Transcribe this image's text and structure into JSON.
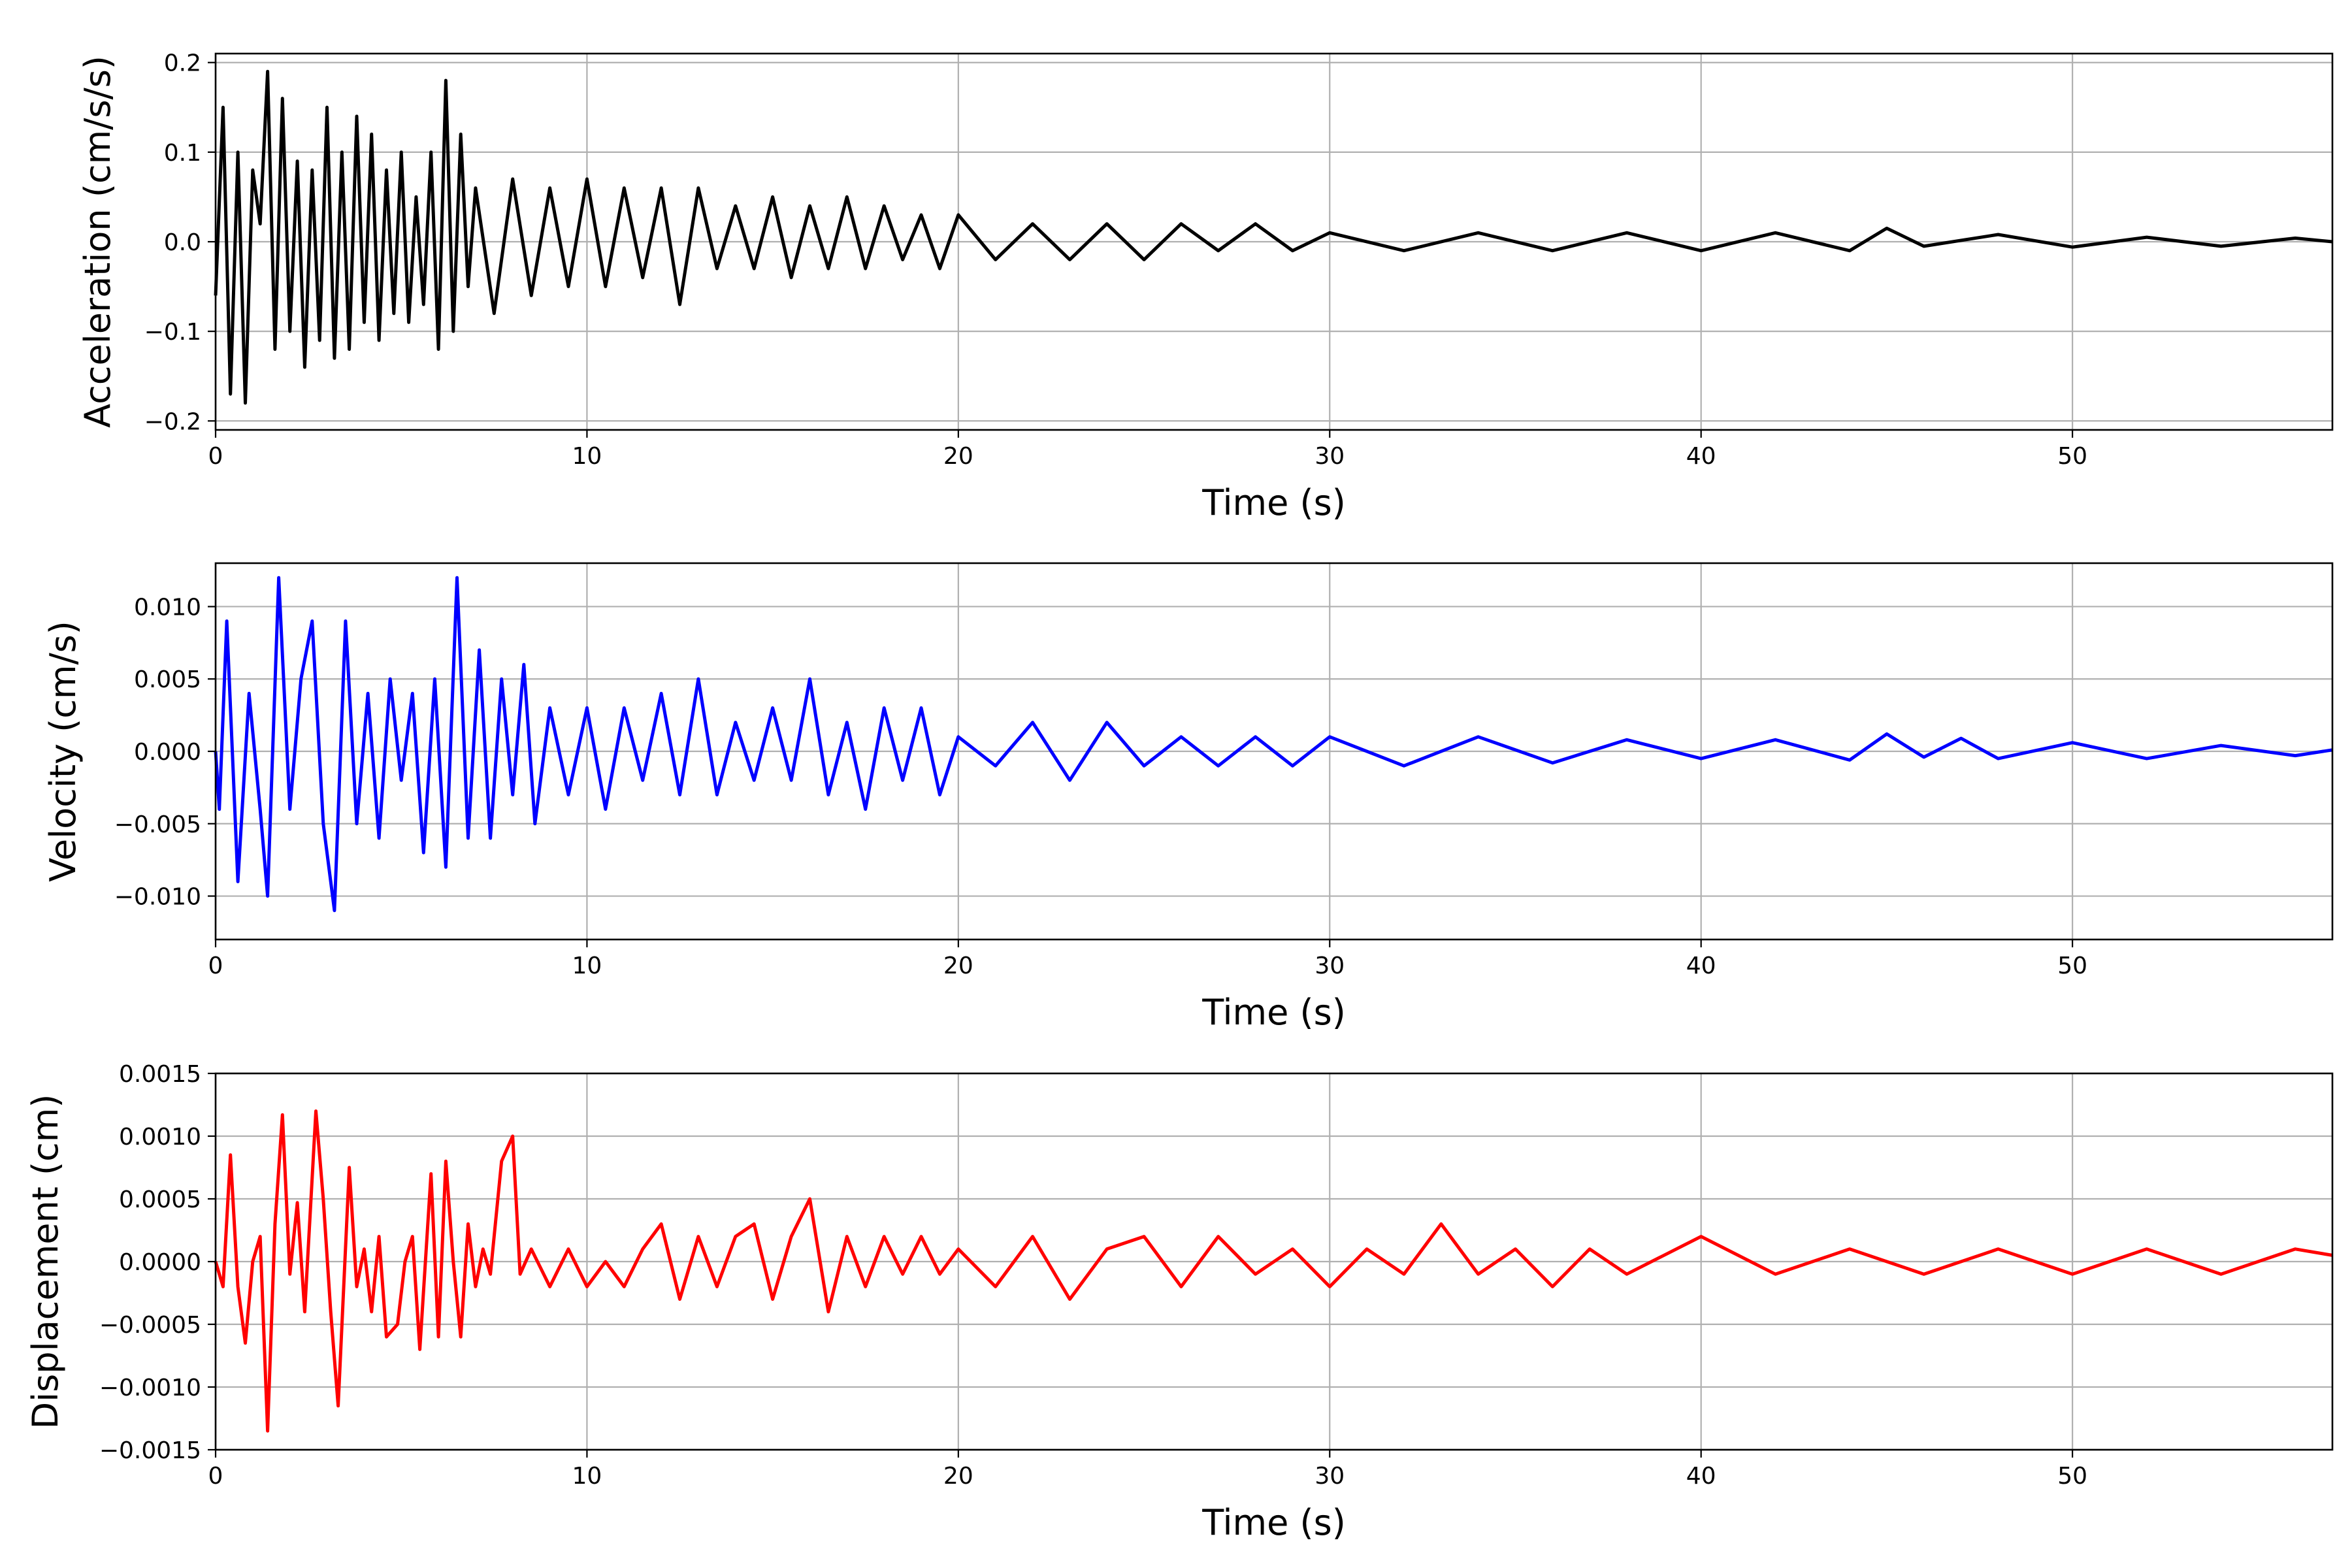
{
  "chart_data": [
    {
      "type": "line",
      "xlabel": "Time (s)",
      "ylabel": "Acceleration (cm/s/s)",
      "xlim": [
        0,
        57
      ],
      "ylim": [
        -0.21,
        0.21
      ],
      "xticks": [
        0,
        10,
        20,
        30,
        40,
        50
      ],
      "xtick_labels": [
        "0",
        "10",
        "20",
        "30",
        "40",
        "50"
      ],
      "yticks": [
        -0.2,
        -0.1,
        0.0,
        0.1,
        0.2
      ],
      "ytick_labels": [
        "−0.2",
        "−0.1",
        "0.0",
        "0.1",
        "0.2"
      ],
      "grid": true,
      "legend": "none",
      "series": [
        {
          "color": "#000000",
          "x": [
            0,
            0.2,
            0.4,
            0.6,
            0.8,
            1.0,
            1.2,
            1.4,
            1.6,
            1.8,
            2.0,
            2.2,
            2.4,
            2.6,
            2.8,
            3.0,
            3.2,
            3.4,
            3.6,
            3.8,
            4.0,
            4.2,
            4.4,
            4.6,
            4.8,
            5.0,
            5.2,
            5.4,
            5.6,
            5.8,
            6.0,
            6.2,
            6.4,
            6.6,
            6.8,
            7.0,
            7.5,
            8,
            8.5,
            9,
            9.5,
            10,
            10.5,
            11,
            11.5,
            12,
            12.5,
            13,
            13.5,
            14,
            14.5,
            15,
            15.5,
            16,
            16.5,
            17,
            17.5,
            18,
            18.5,
            19,
            19.5,
            20,
            21,
            22,
            23,
            24,
            25,
            26,
            27,
            28,
            29,
            30,
            32,
            34,
            36,
            38,
            40,
            42,
            44,
            45,
            46,
            48,
            50,
            52,
            54,
            56,
            57
          ],
          "y": [
            -0.06,
            0.15,
            -0.17,
            0.1,
            -0.18,
            0.08,
            0.02,
            0.19,
            -0.12,
            0.16,
            -0.1,
            0.09,
            -0.14,
            0.08,
            -0.11,
            0.15,
            -0.13,
            0.1,
            -0.12,
            0.14,
            -0.09,
            0.12,
            -0.11,
            0.08,
            -0.08,
            0.1,
            -0.09,
            0.05,
            -0.07,
            0.1,
            -0.12,
            0.18,
            -0.1,
            0.12,
            -0.05,
            0.06,
            -0.08,
            0.07,
            -0.06,
            0.06,
            -0.05,
            0.07,
            -0.05,
            0.06,
            -0.04,
            0.06,
            -0.07,
            0.06,
            -0.03,
            0.04,
            -0.03,
            0.05,
            -0.04,
            0.04,
            -0.03,
            0.05,
            -0.03,
            0.04,
            -0.02,
            0.03,
            -0.03,
            0.03,
            -0.02,
            0.02,
            -0.02,
            0.02,
            -0.02,
            0.02,
            -0.01,
            0.02,
            -0.01,
            0.01,
            -0.01,
            0.01,
            -0.01,
            0.01,
            -0.01,
            0.01,
            -0.01,
            0.015,
            -0.005,
            0.008,
            -0.006,
            0.005,
            -0.005,
            0.004,
            0.0
          ]
        }
      ]
    },
    {
      "type": "line",
      "xlabel": "Time (s)",
      "ylabel": "Velocity (cm/s)",
      "xlim": [
        0,
        57
      ],
      "ylim": [
        -0.013,
        0.013
      ],
      "xticks": [
        0,
        10,
        20,
        30,
        40,
        50
      ],
      "xtick_labels": [
        "0",
        "10",
        "20",
        "30",
        "40",
        "50"
      ],
      "yticks": [
        -0.01,
        -0.005,
        0.0,
        0.005,
        0.01
      ],
      "ytick_labels": [
        "−0.010",
        "−0.005",
        "0.000",
        "0.005",
        "0.010"
      ],
      "grid": true,
      "legend": "none",
      "series": [
        {
          "color": "#0000ff",
          "x": [
            0,
            0.1,
            0.3,
            0.6,
            0.9,
            1.2,
            1.4,
            1.7,
            2.0,
            2.3,
            2.6,
            2.9,
            3.2,
            3.5,
            3.8,
            4.1,
            4.4,
            4.7,
            5.0,
            5.3,
            5.6,
            5.9,
            6.2,
            6.5,
            6.8,
            7.1,
            7.4,
            7.7,
            8.0,
            8.3,
            8.6,
            9,
            9.5,
            10,
            10.5,
            11,
            11.5,
            12,
            12.5,
            13,
            13.5,
            14,
            14.5,
            15,
            15.5,
            16,
            16.5,
            17,
            17.5,
            18,
            18.5,
            19,
            19.5,
            20,
            21,
            22,
            23,
            24,
            25,
            26,
            27,
            28,
            29,
            30,
            32,
            34,
            36,
            38,
            40,
            42,
            44,
            45,
            46,
            47,
            48,
            50,
            52,
            54,
            56,
            57
          ],
          "y": [
            0.0,
            -0.004,
            0.009,
            -0.009,
            0.004,
            -0.004,
            -0.01,
            0.012,
            -0.004,
            0.005,
            0.009,
            -0.005,
            -0.011,
            0.009,
            -0.005,
            0.004,
            -0.006,
            0.005,
            -0.002,
            0.004,
            -0.007,
            0.005,
            -0.008,
            0.012,
            -0.006,
            0.007,
            -0.006,
            0.005,
            -0.003,
            0.006,
            -0.005,
            0.003,
            -0.003,
            0.003,
            -0.004,
            0.003,
            -0.002,
            0.004,
            -0.003,
            0.005,
            -0.003,
            0.002,
            -0.002,
            0.003,
            -0.002,
            0.005,
            -0.003,
            0.002,
            -0.004,
            0.003,
            -0.002,
            0.003,
            -0.003,
            0.001,
            -0.001,
            0.002,
            -0.002,
            0.002,
            -0.001,
            0.001,
            -0.001,
            0.001,
            -0.001,
            0.001,
            -0.001,
            0.001,
            -0.0008,
            0.0008,
            -0.0005,
            0.0008,
            -0.0006,
            0.0012,
            -0.0004,
            0.0009,
            -0.0005,
            0.0006,
            -0.0005,
            0.0004,
            -0.0003,
            0.0001
          ]
        }
      ]
    },
    {
      "type": "line",
      "xlabel": "Time (s)",
      "ylabel": "Displacement (cm)",
      "xlim": [
        0,
        57
      ],
      "ylim": [
        -0.0015,
        0.0015
      ],
      "xticks": [
        0,
        10,
        20,
        30,
        40,
        50
      ],
      "xtick_labels": [
        "0",
        "10",
        "20",
        "30",
        "40",
        "50"
      ],
      "yticks": [
        -0.0015,
        -0.001,
        -0.0005,
        0.0,
        0.0005,
        0.001,
        0.0015
      ],
      "ytick_labels": [
        "−0.0015",
        "−0.0010",
        "−0.0005",
        "0.0000",
        "0.0005",
        "0.0010",
        "0.0015"
      ],
      "grid": true,
      "legend": "none",
      "series": [
        {
          "color": "#ff0000",
          "x": [
            0,
            0.2,
            0.4,
            0.6,
            0.8,
            1.0,
            1.2,
            1.4,
            1.6,
            1.8,
            2.0,
            2.2,
            2.4,
            2.7,
            2.9,
            3.1,
            3.3,
            3.6,
            3.8,
            4.0,
            4.2,
            4.4,
            4.6,
            4.9,
            5.1,
            5.3,
            5.5,
            5.8,
            6.0,
            6.2,
            6.4,
            6.6,
            6.8,
            7.0,
            7.2,
            7.4,
            7.7,
            8.0,
            8.2,
            8.5,
            9,
            9.5,
            10,
            10.5,
            11,
            11.5,
            12,
            12.5,
            13,
            13.5,
            14,
            14.5,
            15,
            15.5,
            16,
            16.5,
            17,
            17.5,
            18,
            18.5,
            19,
            19.5,
            20,
            21,
            22,
            23,
            24,
            25,
            26,
            27,
            28,
            29,
            30,
            31,
            32,
            33,
            34,
            35,
            36,
            37,
            38,
            40,
            42,
            44,
            46,
            48,
            50,
            52,
            54,
            56,
            57
          ],
          "y": [
            0.0,
            -0.0002,
            0.00085,
            -0.0002,
            -0.00065,
            0.0,
            0.0002,
            -0.00135,
            0.0003,
            0.00117,
            -0.0001,
            0.00047,
            -0.0004,
            0.0012,
            0.0005,
            -0.0004,
            -0.00115,
            0.00075,
            -0.0002,
            0.0001,
            -0.0004,
            0.0002,
            -0.0006,
            -0.0005,
            0.0,
            0.0002,
            -0.0007,
            0.0007,
            -0.0006,
            0.0008,
            0.0,
            -0.0006,
            0.0003,
            -0.0002,
            0.0001,
            -0.0001,
            0.0008,
            0.001,
            -0.0001,
            0.0001,
            -0.0002,
            0.0001,
            -0.0002,
            0.0,
            -0.0002,
            0.0001,
            0.0003,
            -0.0003,
            0.0002,
            -0.0002,
            0.0002,
            0.0003,
            -0.0003,
            0.0002,
            0.0005,
            -0.0004,
            0.0002,
            -0.0002,
            0.0002,
            -0.0001,
            0.0002,
            -0.0001,
            0.0001,
            -0.0002,
            0.0002,
            -0.0003,
            0.0001,
            0.0002,
            -0.0002,
            0.0002,
            -0.0001,
            0.0001,
            -0.0002,
            0.0001,
            -0.0001,
            0.0003,
            -0.0001,
            0.0001,
            -0.0002,
            0.0001,
            -0.0001,
            0.0002,
            -0.0001,
            0.0001,
            -0.0001,
            0.0001,
            -0.0001,
            0.0001,
            -0.0001,
            0.0001,
            5e-05
          ]
        }
      ]
    }
  ]
}
